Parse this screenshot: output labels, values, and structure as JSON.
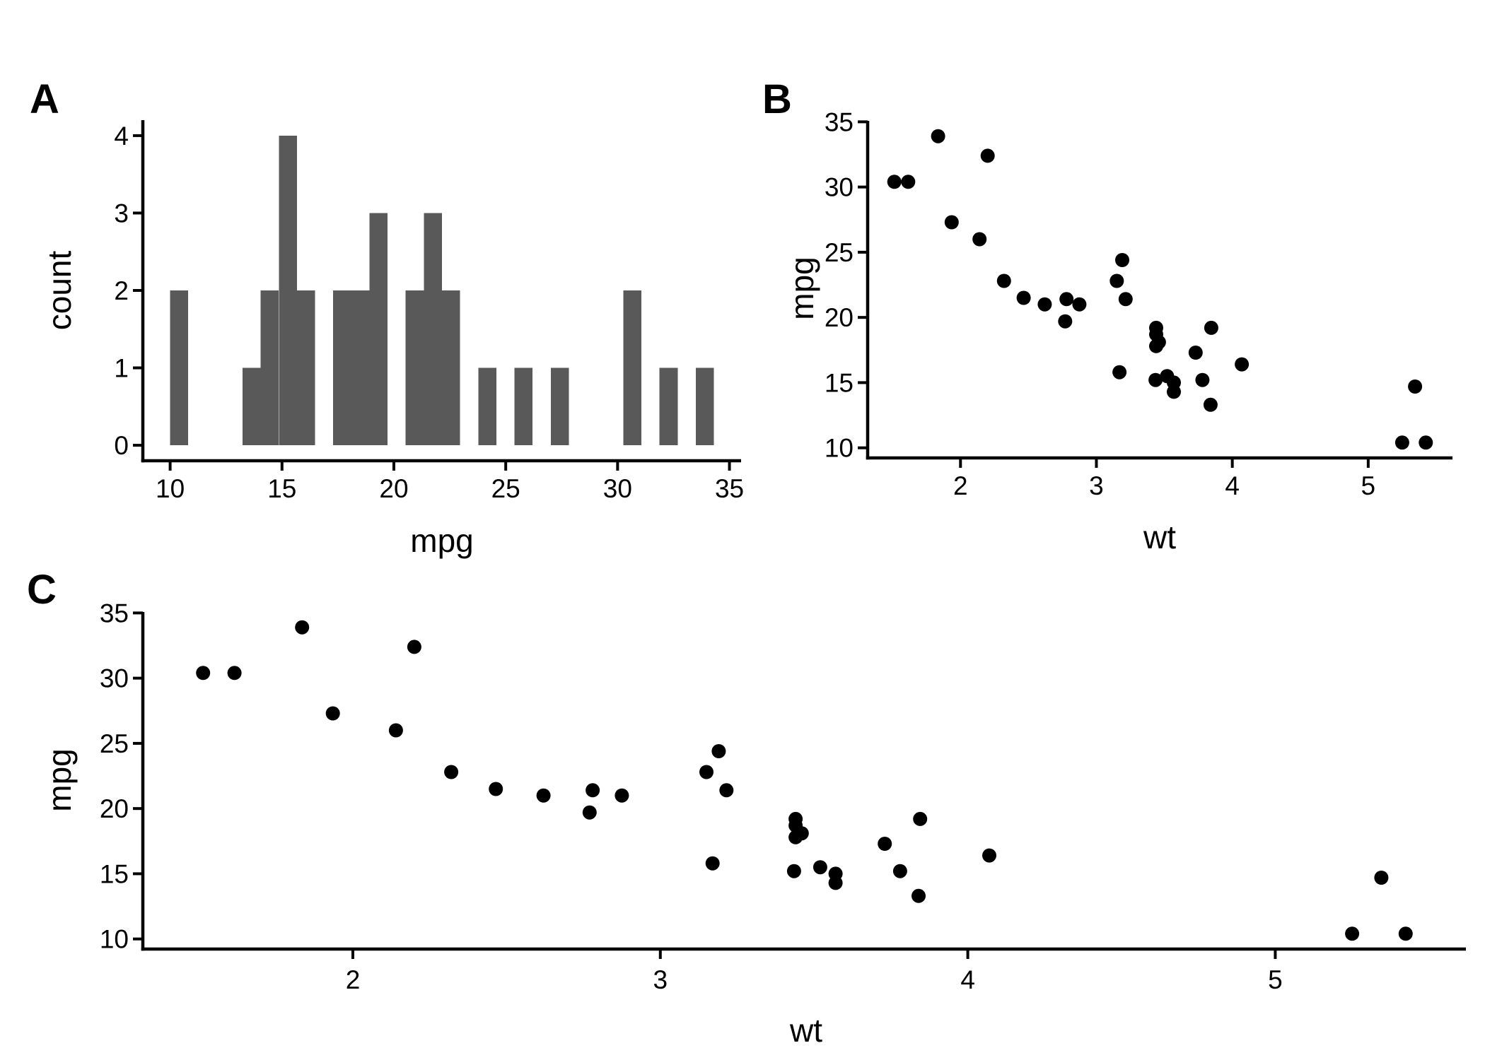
{
  "figure": {
    "background": "#ffffff",
    "axis_color": "#000000",
    "text_color": "#000000"
  },
  "chart_data": [
    {
      "id": "A",
      "panel_label": "A",
      "type": "bar",
      "title": "",
      "xlabel": "mpg",
      "ylabel": "count",
      "x_ticks": [
        10,
        15,
        20,
        25,
        30,
        35
      ],
      "y_ticks": [
        0,
        1,
        2,
        3,
        4
      ],
      "xlim": [
        8.78,
        35.52
      ],
      "ylim": [
        -0.2,
        4.2
      ],
      "grid": false,
      "legend": "none",
      "bar_color": "#595959",
      "binwidth": 0.8103,
      "bars": [
        {
          "center": 10.4,
          "count": 2
        },
        {
          "center": 13.6414,
          "count": 1
        },
        {
          "center": 14.4517,
          "count": 2
        },
        {
          "center": 15.2621,
          "count": 4
        },
        {
          "center": 16.0724,
          "count": 2
        },
        {
          "center": 17.6931,
          "count": 2
        },
        {
          "center": 18.5034,
          "count": 2
        },
        {
          "center": 19.3138,
          "count": 3
        },
        {
          "center": 20.9345,
          "count": 2
        },
        {
          "center": 21.7448,
          "count": 3
        },
        {
          "center": 22.5552,
          "count": 2
        },
        {
          "center": 24.1759,
          "count": 1
        },
        {
          "center": 25.7966,
          "count": 1
        },
        {
          "center": 27.4172,
          "count": 1
        },
        {
          "center": 30.6586,
          "count": 2
        },
        {
          "center": 32.2793,
          "count": 1
        },
        {
          "center": 33.9,
          "count": 1
        }
      ]
    },
    {
      "id": "B",
      "panel_label": "B",
      "type": "scatter",
      "title": "",
      "xlabel": "wt",
      "ylabel": "mpg",
      "x_ticks": [
        2,
        3,
        4,
        5
      ],
      "y_ticks": [
        10,
        15,
        20,
        25,
        30,
        35
      ],
      "xlim": [
        1.317,
        5.62
      ],
      "ylim": [
        9.225,
        35.075
      ],
      "grid": false,
      "legend": "none",
      "point_color": "#000000",
      "points": [
        {
          "wt": 2.62,
          "mpg": 21.0
        },
        {
          "wt": 2.875,
          "mpg": 21.0
        },
        {
          "wt": 2.32,
          "mpg": 22.8
        },
        {
          "wt": 3.215,
          "mpg": 21.4
        },
        {
          "wt": 3.44,
          "mpg": 18.7
        },
        {
          "wt": 3.46,
          "mpg": 18.1
        },
        {
          "wt": 3.57,
          "mpg": 14.3
        },
        {
          "wt": 3.19,
          "mpg": 24.4
        },
        {
          "wt": 3.15,
          "mpg": 22.8
        },
        {
          "wt": 3.44,
          "mpg": 19.2
        },
        {
          "wt": 3.44,
          "mpg": 17.8
        },
        {
          "wt": 4.07,
          "mpg": 16.4
        },
        {
          "wt": 3.73,
          "mpg": 17.3
        },
        {
          "wt": 3.78,
          "mpg": 15.2
        },
        {
          "wt": 5.25,
          "mpg": 10.4
        },
        {
          "wt": 5.424,
          "mpg": 10.4
        },
        {
          "wt": 5.345,
          "mpg": 14.7
        },
        {
          "wt": 2.2,
          "mpg": 32.4
        },
        {
          "wt": 1.615,
          "mpg": 30.4
        },
        {
          "wt": 1.835,
          "mpg": 33.9
        },
        {
          "wt": 2.465,
          "mpg": 21.5
        },
        {
          "wt": 3.52,
          "mpg": 15.5
        },
        {
          "wt": 3.435,
          "mpg": 15.2
        },
        {
          "wt": 3.84,
          "mpg": 13.3
        },
        {
          "wt": 3.845,
          "mpg": 19.2
        },
        {
          "wt": 1.935,
          "mpg": 27.3
        },
        {
          "wt": 2.14,
          "mpg": 26.0
        },
        {
          "wt": 1.513,
          "mpg": 30.4
        },
        {
          "wt": 3.17,
          "mpg": 15.8
        },
        {
          "wt": 2.77,
          "mpg": 19.7
        },
        {
          "wt": 3.57,
          "mpg": 15.0
        },
        {
          "wt": 2.78,
          "mpg": 21.4
        }
      ]
    },
    {
      "id": "C",
      "panel_label": "C",
      "type": "scatter",
      "title": "",
      "xlabel": "wt",
      "ylabel": "mpg",
      "x_ticks": [
        2,
        3,
        4,
        5
      ],
      "y_ticks": [
        10,
        15,
        20,
        25,
        30,
        35
      ],
      "xlim": [
        1.317,
        5.62
      ],
      "ylim": [
        9.225,
        35.075
      ],
      "grid": false,
      "legend": "none",
      "point_color": "#000000",
      "points": [
        {
          "wt": 2.62,
          "mpg": 21.0
        },
        {
          "wt": 2.875,
          "mpg": 21.0
        },
        {
          "wt": 2.32,
          "mpg": 22.8
        },
        {
          "wt": 3.215,
          "mpg": 21.4
        },
        {
          "wt": 3.44,
          "mpg": 18.7
        },
        {
          "wt": 3.46,
          "mpg": 18.1
        },
        {
          "wt": 3.57,
          "mpg": 14.3
        },
        {
          "wt": 3.19,
          "mpg": 24.4
        },
        {
          "wt": 3.15,
          "mpg": 22.8
        },
        {
          "wt": 3.44,
          "mpg": 19.2
        },
        {
          "wt": 3.44,
          "mpg": 17.8
        },
        {
          "wt": 4.07,
          "mpg": 16.4
        },
        {
          "wt": 3.73,
          "mpg": 17.3
        },
        {
          "wt": 3.78,
          "mpg": 15.2
        },
        {
          "wt": 5.25,
          "mpg": 10.4
        },
        {
          "wt": 5.424,
          "mpg": 10.4
        },
        {
          "wt": 5.345,
          "mpg": 14.7
        },
        {
          "wt": 2.2,
          "mpg": 32.4
        },
        {
          "wt": 1.615,
          "mpg": 30.4
        },
        {
          "wt": 1.835,
          "mpg": 33.9
        },
        {
          "wt": 2.465,
          "mpg": 21.5
        },
        {
          "wt": 3.52,
          "mpg": 15.5
        },
        {
          "wt": 3.435,
          "mpg": 15.2
        },
        {
          "wt": 3.84,
          "mpg": 13.3
        },
        {
          "wt": 3.845,
          "mpg": 19.2
        },
        {
          "wt": 1.935,
          "mpg": 27.3
        },
        {
          "wt": 2.14,
          "mpg": 26.0
        },
        {
          "wt": 1.513,
          "mpg": 30.4
        },
        {
          "wt": 3.17,
          "mpg": 15.8
        },
        {
          "wt": 2.77,
          "mpg": 19.7
        },
        {
          "wt": 3.57,
          "mpg": 15.0
        },
        {
          "wt": 2.78,
          "mpg": 21.4
        }
      ]
    }
  ]
}
